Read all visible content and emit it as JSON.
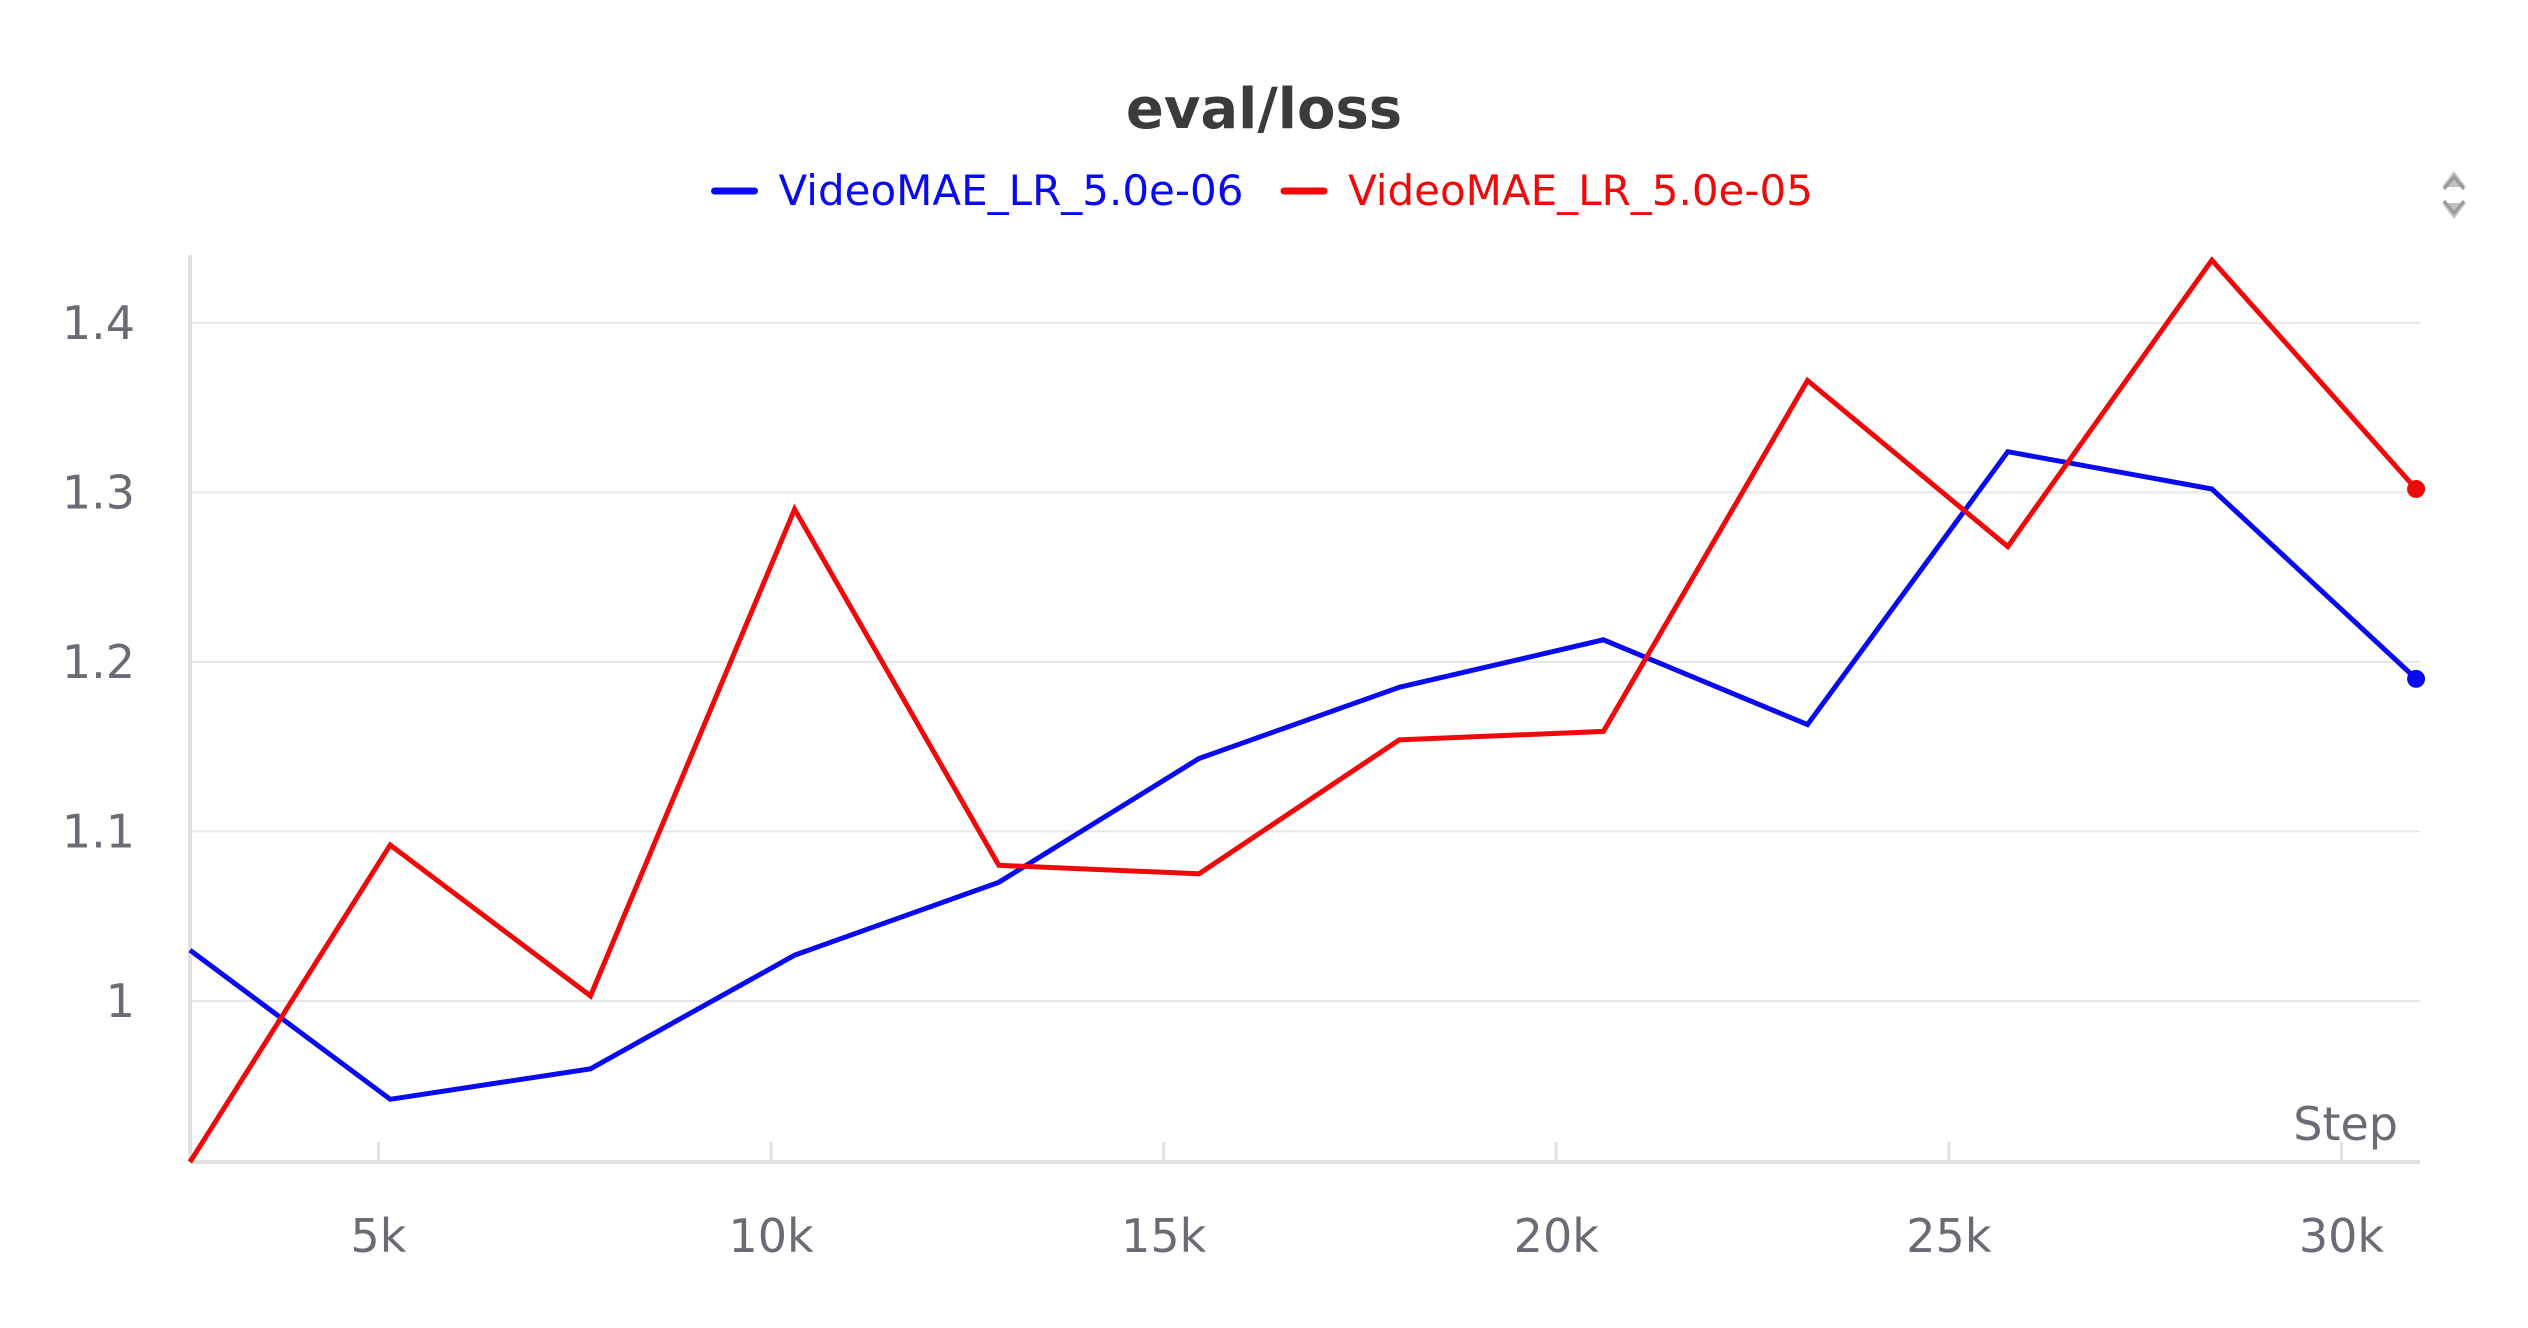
{
  "chart_data": {
    "type": "line",
    "title": "eval/loss",
    "xlabel": "Step",
    "ylabel": "",
    "xlim": [
      2600,
      31000
    ],
    "ylim": [
      0.905,
      1.44
    ],
    "x_ticks": [
      5000,
      10000,
      15000,
      20000,
      25000,
      30000
    ],
    "x_tick_labels": [
      "5k",
      "10k",
      "15k",
      "20k",
      "25k",
      "30k"
    ],
    "y_ticks": [
      1.0,
      1.1,
      1.2,
      1.3,
      1.4
    ],
    "y_tick_labels": [
      "1",
      "1.1",
      "1.2",
      "1.3",
      "1.4"
    ],
    "grid": true,
    "legend_position": "top-center",
    "series": [
      {
        "name": "VideoMAE_LR_5.0e-06",
        "color": "#0a0aee",
        "x": [
          2600,
          5150,
          7700,
          10300,
          12900,
          15450,
          18000,
          20600,
          23200,
          25750,
          28350,
          30950
        ],
        "values": [
          1.03,
          0.942,
          0.96,
          1.027,
          1.07,
          1.143,
          1.185,
          1.213,
          1.163,
          1.324,
          1.302,
          1.19
        ]
      },
      {
        "name": "VideoMAE_LR_5.0e-05",
        "color": "#ee0a0a",
        "x": [
          2600,
          5150,
          7700,
          10300,
          12900,
          15450,
          18000,
          20600,
          23200,
          25750,
          28350,
          30950
        ],
        "values": [
          0.905,
          1.092,
          1.003,
          1.29,
          1.08,
          1.075,
          1.154,
          1.159,
          1.366,
          1.268,
          1.437,
          1.302
        ]
      }
    ]
  },
  "icons": {
    "settings": "chevron-updown-icon"
  }
}
